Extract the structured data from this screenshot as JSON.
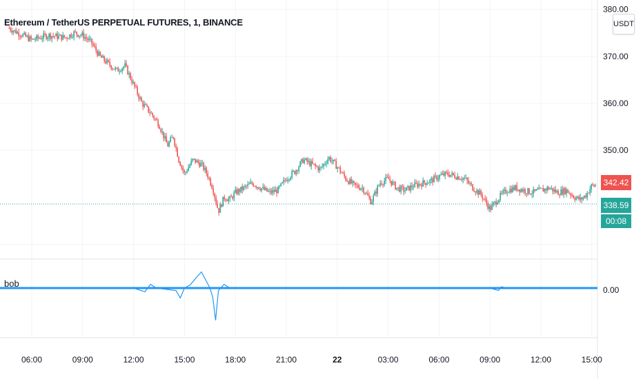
{
  "header": {
    "title": "Ethereum / TetherUS PERPETUAL FUTURES, 1, BINANCE",
    "currency": "USDT"
  },
  "colors": {
    "up": "#26a69a",
    "down": "#ef5350",
    "indicator": "#2196f3",
    "grid": "#f0f3fa",
    "text": "#131722"
  },
  "price_tags": {
    "last_price": "342.42",
    "line_price": "338.59",
    "countdown": "00:08"
  },
  "indicator": {
    "name": "bob",
    "zero_label": "0.00"
  },
  "chart_data": [
    {
      "type": "line",
      "title": "Ethereum / TetherUS PERPETUAL FUTURES, 1, BINANCE",
      "ylabel": "USDT",
      "x": [
        "04:40",
        "06:00",
        "07:00",
        "08:00",
        "08:30",
        "09:00",
        "09:30",
        "10:00",
        "10:30",
        "11:00",
        "11:30",
        "12:00",
        "12:30",
        "13:00",
        "13:30",
        "14:00",
        "14:20",
        "14:40",
        "15:00",
        "15:30",
        "16:00",
        "16:20",
        "16:40",
        "17:00",
        "17:20",
        "17:40",
        "18:00",
        "18:30",
        "19:00",
        "19:30",
        "20:00",
        "20:30",
        "21:00",
        "21:30",
        "22:00",
        "22:30",
        "23:00",
        "23:30",
        "00:00",
        "00:30",
        "01:00",
        "01:30",
        "02:00",
        "02:30",
        "03:00",
        "03:30",
        "04:00",
        "04:30",
        "05:00",
        "05:30",
        "06:00",
        "06:30",
        "07:00",
        "07:30",
        "08:00",
        "08:30",
        "09:00",
        "09:20",
        "09:40",
        "10:00",
        "10:30",
        "11:00",
        "11:30",
        "12:00",
        "12:30",
        "13:00",
        "13:30",
        "14:00",
        "14:20",
        "14:40",
        "15:00",
        "15:15"
      ],
      "values": [
        376.0,
        373.5,
        374.5,
        374.0,
        375.0,
        374.5,
        373.0,
        370.0,
        368.5,
        367.0,
        368.0,
        364.0,
        360.0,
        358.0,
        355.5,
        351.0,
        353.0,
        348.0,
        345.0,
        348.0,
        347.0,
        345.0,
        342.0,
        337.0,
        340.0,
        339.5,
        341.0,
        342.0,
        343.0,
        342.0,
        341.0,
        341.5,
        344.0,
        345.5,
        348.0,
        347.0,
        346.0,
        348.5,
        346.5,
        344.0,
        342.5,
        342.0,
        339.0,
        343.0,
        344.0,
        342.0,
        341.5,
        342.5,
        343.0,
        343.5,
        344.5,
        345.0,
        344.5,
        344.0,
        342.0,
        340.5,
        337.5,
        339.0,
        340.5,
        341.5,
        342.0,
        341.5,
        341.0,
        341.5,
        342.0,
        341.0,
        341.5,
        340.0,
        339.5,
        340.5,
        342.5,
        342.42
      ],
      "ylim": [
        327,
        382
      ],
      "yticks": [
        "380.00",
        "370.00",
        "360.00",
        "350.00"
      ],
      "xticks": [
        "06:00",
        "09:00",
        "12:00",
        "15:00",
        "18:00",
        "21:00",
        "22",
        "03:00",
        "06:00",
        "09:00",
        "12:00",
        "15:00"
      ],
      "last_price": 342.42,
      "horizontal_line": 338.59,
      "grid": true
    },
    {
      "type": "line",
      "title": "bob",
      "x": [
        "04:40",
        "12:00",
        "12:40",
        "13:00",
        "13:20",
        "14:30",
        "14:45",
        "15:00",
        "15:20",
        "15:40",
        "16:00",
        "16:30",
        "16:40",
        "16:50",
        "17:00",
        "17:20",
        "17:40",
        "18:30",
        "21:00",
        "03:00",
        "09:00",
        "09:30",
        "09:40",
        "10:00",
        "12:00",
        "15:00",
        "15:15"
      ],
      "values": [
        0.0,
        0.0,
        -0.6,
        0.6,
        0.0,
        -0.4,
        -1.6,
        0.0,
        0.5,
        1.6,
        2.6,
        0.0,
        -1.5,
        -5.2,
        -0.4,
        0.6,
        0.0,
        0.0,
        0.0,
        0.0,
        0.0,
        -0.4,
        0.2,
        0.0,
        0.0,
        0.0,
        0.0
      ],
      "yticks": [
        "0.00"
      ],
      "grid": true
    }
  ]
}
